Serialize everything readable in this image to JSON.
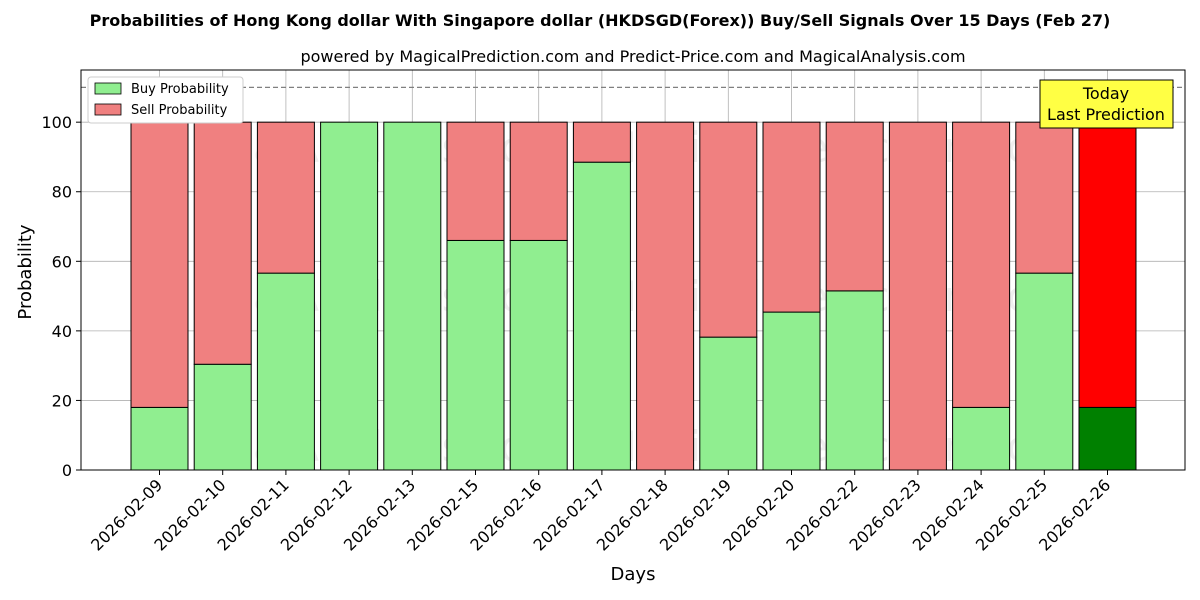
{
  "chart_data": {
    "type": "bar",
    "stacked": true,
    "title": "Probabilities of Hong Kong dollar With Singapore dollar (HKDSGD(Forex)) Buy/Sell Signals Over 15 Days (Feb 27)",
    "subtitle": "powered by MagicalPrediction.com and Predict-Price.com and MagicalAnalysis.com",
    "xlabel": "Days",
    "ylabel": "Probability",
    "ylim": [
      0,
      115
    ],
    "yticks": [
      0,
      20,
      40,
      60,
      80,
      100
    ],
    "reference_line": 110,
    "grid": true,
    "legend_position": "top-left",
    "categories": [
      "2026-02-09",
      "2026-02-10",
      "2026-02-11",
      "2026-02-12",
      "2026-02-13",
      "2026-02-15",
      "2026-02-16",
      "2026-02-17",
      "2026-02-18",
      "2026-02-19",
      "2026-02-20",
      "2026-02-22",
      "2026-02-23",
      "2026-02-24",
      "2026-02-25",
      "2026-02-26"
    ],
    "series": [
      {
        "name": "Buy Probability",
        "color": "#90ee90",
        "values": [
          18,
          30.4,
          56.6,
          100,
          100,
          66,
          66,
          88.5,
          0,
          38.2,
          45.4,
          51.5,
          0,
          18,
          56.6,
          18
        ]
      },
      {
        "name": "Sell Probability",
        "color": "#f08080",
        "values": [
          82,
          69.6,
          43.4,
          0,
          0,
          34,
          34,
          11.5,
          100,
          61.8,
          54.6,
          48.5,
          100,
          82,
          43.4,
          82
        ]
      }
    ],
    "highlight": {
      "index": 15,
      "buy_color": "#008000",
      "sell_color": "#ff0000"
    },
    "annotation": {
      "lines": [
        "Today",
        "Last Prediction"
      ],
      "background": "#ffff44"
    },
    "watermarks": [
      "MagicalAnalysis.com",
      "MagicalPrediction.com"
    ]
  }
}
